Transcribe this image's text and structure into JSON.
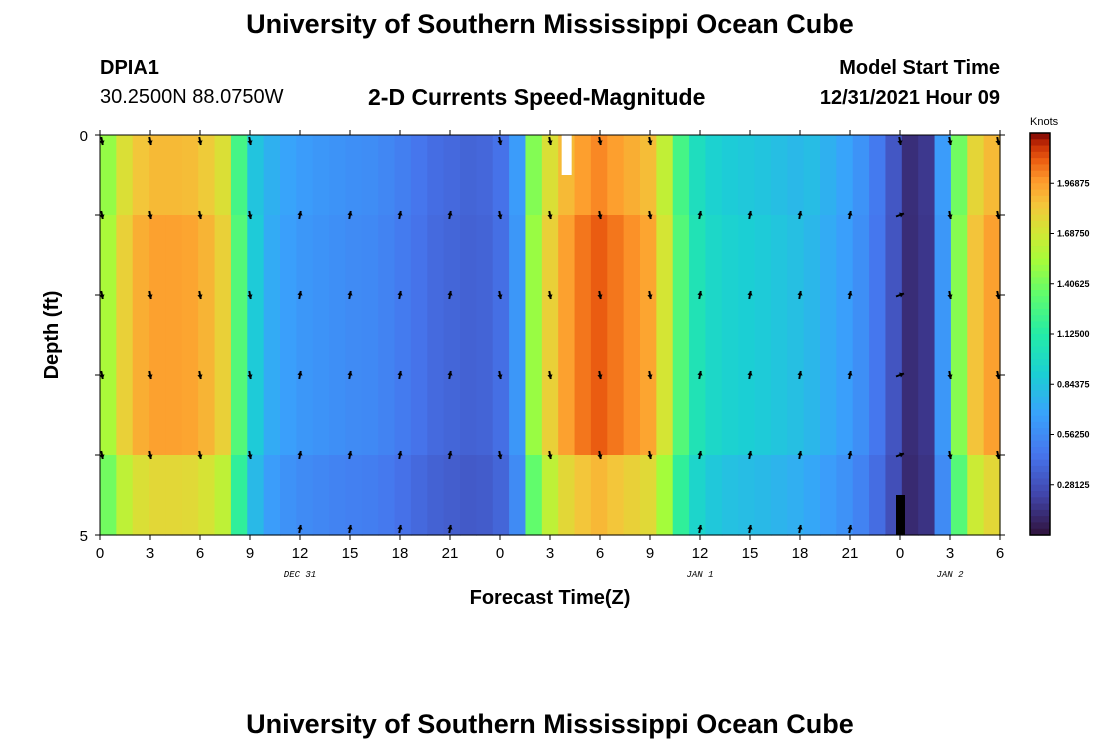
{
  "page": {
    "title": "University of Southern Mississippi Ocean Cube",
    "title_bottom": "University of Southern Mississippi Ocean Cube",
    "station_id": "DPIA1",
    "station_coords": "30.2500N  88.0750W",
    "center_title": "2-D Currents Speed-Magnitude",
    "model_label": "Model Start Time",
    "model_time": "12/31/2021 Hour 09"
  },
  "chart_data": {
    "type": "heatmap",
    "title": "2-D Currents Speed-Magnitude",
    "xlabel": "Forecast Time(Z)",
    "ylabel": "Depth (ft)",
    "colorbar_label": "Knots",
    "x_tick_labels": [
      "0",
      "3",
      "6",
      "9",
      "12",
      "15",
      "18",
      "21",
      "0",
      "3",
      "6",
      "9",
      "12",
      "15",
      "18",
      "21",
      "0",
      "3",
      "6"
    ],
    "date_labels": [
      {
        "text": "DEC 31",
        "at_hour": 12
      },
      {
        "text": "JAN 1",
        "at_hour": 36
      },
      {
        "text": "JAN 2",
        "at_hour": 51
      }
    ],
    "y_tick_labels": [
      "0",
      "5"
    ],
    "ylim": [
      0,
      5
    ],
    "xlim_hours": [
      0,
      54
    ],
    "depth_rows": 5,
    "colorbar_ticks": [
      "1.96875",
      "1.68750",
      "1.40625",
      "1.12500",
      "0.84375",
      "0.56250",
      "0.28125"
    ],
    "colorbar_range": [
      0,
      2.25
    ],
    "speed_by_hour_knots": [
      1.55,
      1.8,
      1.92,
      1.96,
      1.96,
      1.95,
      1.9,
      1.8,
      1.3,
      0.88,
      0.72,
      0.66,
      0.62,
      0.6,
      0.58,
      0.56,
      0.55,
      0.52,
      0.48,
      0.44,
      0.4,
      0.38,
      0.36,
      0.37,
      0.42,
      0.62,
      1.5,
      1.8,
      1.96,
      2.05,
      2.1,
      2.05,
      2.0,
      1.95,
      1.7,
      1.3,
      1.05,
      0.96,
      0.92,
      0.9,
      0.88,
      0.85,
      0.82,
      0.78,
      0.72,
      0.66,
      0.58,
      0.46,
      0.3,
      0.12,
      0.16,
      0.62,
      1.45,
      1.85,
      1.96
    ],
    "arrows_up_hours": [
      12,
      15,
      18,
      21,
      36,
      39,
      42,
      45
    ],
    "arrows_right_hours": [
      48
    ],
    "missing_cells": [
      {
        "hour": 28,
        "depth_row": 0
      }
    ],
    "black_cells": [
      {
        "hour": 48,
        "depth_row": 4
      }
    ]
  }
}
